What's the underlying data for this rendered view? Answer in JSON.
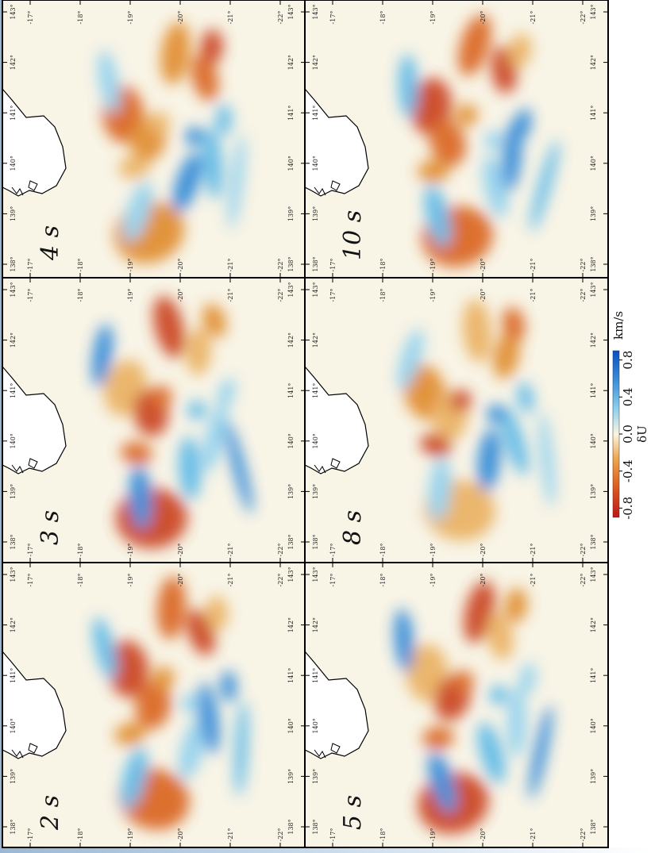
{
  "panels": [
    {
      "label": "4 s"
    },
    {
      "label": "10 s"
    },
    {
      "label": "3 s"
    },
    {
      "label": "8 s"
    },
    {
      "label": "2 s"
    },
    {
      "label": "5 s"
    }
  ],
  "lon_ticks": [
    {
      "value": 138,
      "label": "138°"
    },
    {
      "value": 139,
      "label": "139°"
    },
    {
      "value": 140,
      "label": "140°"
    },
    {
      "value": 141,
      "label": "141°"
    },
    {
      "value": 142,
      "label": "142°"
    },
    {
      "value": 143,
      "label": "143°"
    }
  ],
  "lat_ticks": [
    {
      "value": -17,
      "label": "-17°"
    },
    {
      "value": -18,
      "label": "-18°"
    },
    {
      "value": -19,
      "label": "-19°"
    },
    {
      "value": -20,
      "label": "-20°"
    },
    {
      "value": -21,
      "label": "-21°"
    },
    {
      "value": -22,
      "label": "-22°"
    }
  ],
  "colorbar": {
    "title": "δU",
    "unit": "km/s",
    "clim": [
      -0.9,
      0.9
    ],
    "ticks": [
      -0.8,
      -0.4,
      {
        "value": 0,
        "label": "0.0"
      },
      0.4,
      0.8
    ]
  }
}
